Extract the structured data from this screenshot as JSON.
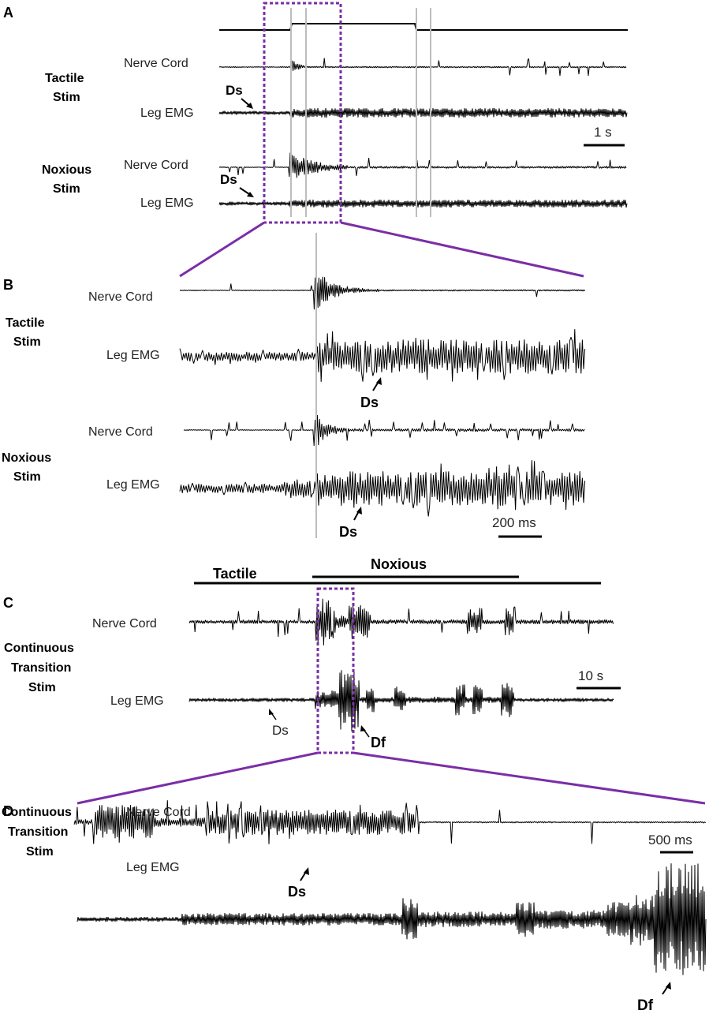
{
  "panels": {
    "a": "A",
    "b": "B",
    "c": "C",
    "d": "D"
  },
  "channels": {
    "nerve_cord": "Nerve Cord",
    "leg_emg": "Leg EMG"
  },
  "groups": {
    "tactile_stim": [
      "Tactile",
      "Stim"
    ],
    "noxious_stim": [
      "Noxious",
      "Stim"
    ],
    "continuous_stim": [
      "Continuous",
      "Transition",
      "Stim"
    ]
  },
  "annotations": {
    "ds": "Ds",
    "df": "Df"
  },
  "scale_bars": {
    "a": "1 s",
    "b": "200 ms",
    "c": "10 s",
    "d": "500 ms"
  },
  "stim_labels": {
    "tactile": "Tactile",
    "noxious": "Noxious"
  },
  "colors": {
    "trace": "#000000",
    "zoom_box": "#7a2ea6",
    "marker_line": "#bdbdbd"
  }
}
